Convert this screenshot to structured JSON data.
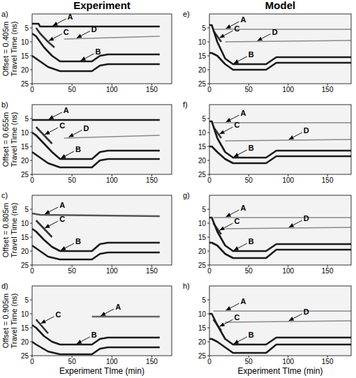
{
  "chart_data": [
    {
      "type": "line",
      "panel": "a)",
      "title": "Experiment",
      "ylabel": [
        "Offset = 0.405m",
        "Travel Time (ns)"
      ],
      "xlim": [
        0,
        175
      ],
      "ylim": [
        25,
        0
      ],
      "xticks": [
        0,
        50,
        100,
        150
      ],
      "yticks": [
        5,
        10,
        15,
        20,
        25
      ],
      "series": [
        {
          "color": "#1a1a1a",
          "x": [
            0,
            8,
            10,
            160
          ],
          "values": [
            3.5,
            3.5,
            4.5,
            4.5
          ]
        },
        {
          "color": "#333333",
          "x": [
            5,
            10,
            20,
            28
          ],
          "values": [
            5,
            7,
            10,
            12
          ]
        },
        {
          "color": "#1a1a1a",
          "x": [
            0,
            5,
            15,
            25,
            35,
            75,
            85,
            95,
            160
          ],
          "values": [
            7,
            8,
            12,
            15,
            17,
            17,
            15,
            14.5,
            14.5
          ]
        },
        {
          "color": "#1a1a1a",
          "x": [
            0,
            5,
            20,
            35,
            75,
            85,
            95,
            160
          ],
          "values": [
            15,
            16,
            19,
            20.5,
            20.5,
            18.5,
            18,
            18
          ]
        },
        {
          "color": "#8a8a8a",
          "x": [
            40,
            160
          ],
          "values": [
            9,
            8
          ]
        }
      ],
      "annotations": [
        {
          "text": "A",
          "x": 25,
          "y": 4.5
        },
        {
          "text": "C",
          "x": 20,
          "y": 9.9
        },
        {
          "text": "B",
          "x": 60,
          "y": 17
        },
        {
          "text": "D",
          "x": 55,
          "y": 8.9
        }
      ]
    },
    {
      "type": "line",
      "panel": "b)",
      "ylabel": [
        "Offset = 0.655m",
        "Travel Time (ns)"
      ],
      "xlim": [
        0,
        175
      ],
      "ylim": [
        25,
        0
      ],
      "xticks": [
        0,
        50,
        100,
        150
      ],
      "yticks": [
        5,
        10,
        15,
        20,
        25
      ],
      "series": [
        {
          "color": "#1a1a1a",
          "x": [
            0,
            160
          ],
          "values": [
            5.5,
            5.5
          ]
        },
        {
          "color": "#333333",
          "x": [
            5,
            25
          ],
          "values": [
            8,
            14
          ]
        },
        {
          "color": "#1a1a1a",
          "x": [
            0,
            5,
            15,
            25,
            35,
            75,
            85,
            95,
            160
          ],
          "values": [
            10,
            11,
            14,
            17,
            19.5,
            19.5,
            17,
            16.5,
            16.5
          ]
        },
        {
          "color": "#1a1a1a",
          "x": [
            0,
            5,
            20,
            35,
            75,
            85,
            95,
            160
          ],
          "values": [
            17,
            18,
            21,
            22.5,
            22.5,
            20,
            19.5,
            19.5
          ]
        },
        {
          "color": "#8a8a8a",
          "x": [
            40,
            160
          ],
          "values": [
            12,
            11
          ]
        }
      ],
      "annotations": [
        {
          "text": "A",
          "x": 20,
          "y": 5.5
        },
        {
          "text": "C",
          "x": 15,
          "y": 11
        },
        {
          "text": "B",
          "x": 35,
          "y": 19.5
        },
        {
          "text": "D",
          "x": 45,
          "y": 11.9
        }
      ]
    },
    {
      "type": "line",
      "panel": "c)",
      "ylabel": [
        "Offset = 0.805m",
        "Travel Time (ns)"
      ],
      "xlim": [
        0,
        175
      ],
      "ylim": [
        25,
        0
      ],
      "xticks": [
        0,
        50,
        100,
        150
      ],
      "yticks": [
        5,
        10,
        15,
        20,
        25
      ],
      "series": [
        {
          "color": "#555555",
          "x": [
            0,
            10,
            160
          ],
          "values": [
            6.5,
            7,
            7.5
          ]
        },
        {
          "color": "#333333",
          "x": [
            5,
            25
          ],
          "values": [
            9,
            15
          ]
        },
        {
          "color": "#1a1a1a",
          "x": [
            0,
            5,
            15,
            25,
            35,
            75,
            85,
            95,
            160
          ],
          "values": [
            12,
            13,
            16,
            18.5,
            20,
            20,
            17.5,
            17,
            17
          ]
        },
        {
          "color": "#1a1a1a",
          "x": [
            0,
            5,
            20,
            35,
            75,
            85,
            95,
            160
          ],
          "values": [
            18,
            19,
            22,
            23,
            23,
            21,
            20.5,
            20.5
          ]
        }
      ],
      "annotations": [
        {
          "text": "A",
          "x": 15,
          "y": 7
        },
        {
          "text": "C",
          "x": 15,
          "y": 12
        },
        {
          "text": "B",
          "x": 35,
          "y": 20
        }
      ]
    },
    {
      "type": "line",
      "panel": "d)",
      "ylabel": [
        "Offset = 0.905m",
        "Travel Time (ns)"
      ],
      "xlabel": "Experiment TIme (min)",
      "xlim": [
        0,
        175
      ],
      "ylim": [
        25,
        0
      ],
      "xticks": [
        0,
        50,
        100,
        150
      ],
      "yticks": [
        5,
        10,
        15,
        20,
        25
      ],
      "series": [
        {
          "color": "#666666",
          "x": [
            75,
            160
          ],
          "values": [
            11,
            11
          ]
        },
        {
          "color": "#333333",
          "x": [
            5,
            20
          ],
          "values": [
            12,
            17
          ]
        },
        {
          "color": "#1a1a1a",
          "x": [
            0,
            5,
            15,
            25,
            35,
            75,
            85,
            95,
            160
          ],
          "values": [
            14,
            15,
            18,
            20,
            21,
            21,
            19,
            18.5,
            18.5
          ]
        },
        {
          "color": "#1a1a1a",
          "x": [
            0,
            5,
            20,
            35,
            75,
            85,
            95,
            160
          ],
          "values": [
            20,
            21,
            23.5,
            24.5,
            24.5,
            22.5,
            22,
            22
          ]
        }
      ],
      "annotations": [
        {
          "text": "A",
          "x": 85,
          "y": 11
        },
        {
          "text": "C",
          "x": 10,
          "y": 13.7
        },
        {
          "text": "B",
          "x": 55,
          "y": 21
        }
      ]
    },
    {
      "type": "line",
      "panel": "e)",
      "title": "Model",
      "xlim": [
        0,
        180
      ],
      "ylim": [
        25,
        0
      ],
      "xticks": [
        0,
        50,
        100,
        150
      ],
      "yticks": [
        5,
        10,
        15,
        20,
        25
      ],
      "series": [
        {
          "color": "#8a8a8a",
          "x": [
            5,
            180
          ],
          "values": [
            5.5,
            5.5
          ]
        },
        {
          "color": "#333333",
          "x": [
            5,
            15
          ],
          "values": [
            6,
            10
          ]
        },
        {
          "color": "#1a1a1a",
          "x": [
            0,
            3,
            10,
            20,
            30,
            72,
            85,
            180
          ],
          "values": [
            4,
            4,
            10,
            16,
            18,
            18,
            15.5,
            15.5
          ]
        },
        {
          "color": "#1a1a1a",
          "x": [
            0,
            3,
            10,
            20,
            30,
            72,
            85,
            180
          ],
          "values": [
            14,
            14,
            15,
            18,
            20,
            20,
            17.5,
            17.5
          ]
        },
        {
          "color": "#8a8a8a",
          "x": [
            20,
            180
          ],
          "values": [
            10,
            9.5
          ]
        }
      ],
      "annotations": [
        {
          "text": "A",
          "x": 20,
          "y": 5.5
        },
        {
          "text": "C",
          "x": 12,
          "y": 8.8
        },
        {
          "text": "B",
          "x": 30,
          "y": 18
        },
        {
          "text": "D",
          "x": 60,
          "y": 9.9
        }
      ]
    },
    {
      "type": "line",
      "panel": "f)",
      "xlim": [
        0,
        180
      ],
      "ylim": [
        25,
        0
      ],
      "xticks": [
        0,
        50,
        100,
        150
      ],
      "yticks": [
        5,
        10,
        15,
        20,
        25
      ],
      "series": [
        {
          "color": "#8a8a8a",
          "x": [
            5,
            180
          ],
          "values": [
            6.5,
            6.5
          ]
        },
        {
          "color": "#333333",
          "x": [
            5,
            15
          ],
          "values": [
            8,
            12
          ]
        },
        {
          "color": "#1a1a1a",
          "x": [
            0,
            3,
            10,
            20,
            30,
            72,
            85,
            180
          ],
          "values": [
            6,
            6,
            12,
            17,
            19,
            19,
            16.5,
            16.5
          ]
        },
        {
          "color": "#1a1a1a",
          "x": [
            0,
            3,
            10,
            20,
            30,
            72,
            85,
            180
          ],
          "values": [
            15,
            15,
            17,
            19.5,
            21,
            21,
            18.5,
            18.5
          ]
        },
        {
          "color": "#8a8a8a",
          "x": [
            20,
            180
          ],
          "values": [
            13,
            12.5
          ]
        }
      ],
      "annotations": [
        {
          "text": "A",
          "x": 20,
          "y": 6.5
        },
        {
          "text": "C",
          "x": 12,
          "y": 10.8
        },
        {
          "text": "B",
          "x": 30,
          "y": 19
        },
        {
          "text": "D",
          "x": 100,
          "y": 12.75
        }
      ]
    },
    {
      "type": "line",
      "panel": "g)",
      "xlim": [
        0,
        180
      ],
      "ylim": [
        25,
        0
      ],
      "xticks": [
        0,
        50,
        100,
        150
      ],
      "yticks": [
        5,
        10,
        15,
        20,
        25
      ],
      "series": [
        {
          "color": "#8a8a8a",
          "x": [
            5,
            180
          ],
          "values": [
            8,
            8
          ]
        },
        {
          "color": "#333333",
          "x": [
            5,
            15
          ],
          "values": [
            10,
            14
          ]
        },
        {
          "color": "#1a1a1a",
          "x": [
            0,
            3,
            10,
            20,
            30,
            72,
            85,
            180
          ],
          "values": [
            8,
            8,
            13,
            18,
            20,
            20,
            17.5,
            17.5
          ]
        },
        {
          "color": "#1a1a1a",
          "x": [
            0,
            3,
            10,
            20,
            30,
            72,
            85,
            180
          ],
          "values": [
            17,
            17,
            18,
            21,
            22.5,
            22.5,
            19.5,
            19.5
          ]
        },
        {
          "color": "#8a8a8a",
          "x": [
            20,
            180
          ],
          "values": [
            12,
            11.5
          ]
        }
      ],
      "annotations": [
        {
          "text": "A",
          "x": 20,
          "y": 8
        },
        {
          "text": "C",
          "x": 12,
          "y": 12.8
        },
        {
          "text": "B",
          "x": 30,
          "y": 20
        },
        {
          "text": "D",
          "x": 100,
          "y": 11.75
        }
      ]
    },
    {
      "type": "line",
      "panel": "h)",
      "xlabel": "Experiment TIme (min)",
      "xlim": [
        0,
        180
      ],
      "ylim": [
        25,
        0
      ],
      "xticks": [
        0,
        50,
        100,
        150
      ],
      "yticks": [
        5,
        10,
        15,
        20,
        25
      ],
      "series": [
        {
          "color": "#8a8a8a",
          "x": [
            5,
            180
          ],
          "values": [
            9,
            9
          ]
        },
        {
          "color": "#333333",
          "x": [
            5,
            15
          ],
          "values": [
            12,
            16
          ]
        },
        {
          "color": "#1a1a1a",
          "x": [
            0,
            3,
            10,
            20,
            30,
            72,
            85,
            180
          ],
          "values": [
            10,
            10,
            14,
            19,
            21,
            21,
            18.5,
            18.5
          ]
        },
        {
          "color": "#1a1a1a",
          "x": [
            0,
            3,
            10,
            20,
            30,
            72,
            85,
            180
          ],
          "values": [
            19,
            19,
            20,
            22,
            24,
            24,
            21,
            21
          ]
        },
        {
          "color": "#8a8a8a",
          "x": [
            20,
            180
          ],
          "values": [
            13,
            12.5
          ]
        }
      ],
      "annotations": [
        {
          "text": "A",
          "x": 20,
          "y": 9
        },
        {
          "text": "C",
          "x": 12,
          "y": 14.8
        },
        {
          "text": "B",
          "x": 30,
          "y": 21
        },
        {
          "text": "D",
          "x": 100,
          "y": 12.75
        }
      ]
    }
  ]
}
